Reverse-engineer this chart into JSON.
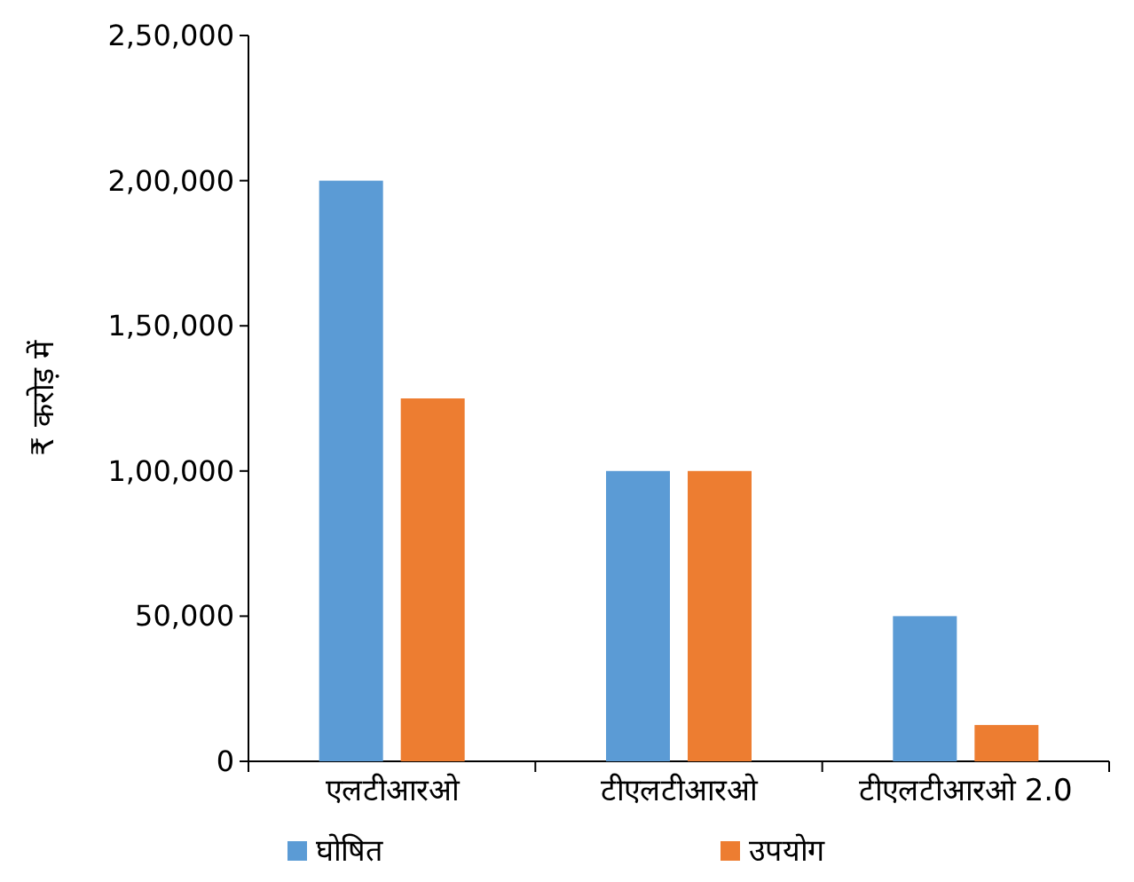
{
  "chart_data": {
    "type": "bar",
    "ylabel": "₹ करोड़ में",
    "categories": [
      "एलटीआरओ",
      "टीएलटीआरओ",
      "टीएलटीआरओ 2.0"
    ],
    "series": [
      {
        "name": "घोषित",
        "color": "#5b9bd5",
        "values": [
          200000,
          100000,
          50000
        ]
      },
      {
        "name": "उपयोग",
        "color": "#ed7d31",
        "values": [
          125000,
          100000,
          12500
        ]
      }
    ],
    "ylim": [
      0,
      250000
    ],
    "yticks": [
      {
        "value": 0,
        "label": "0"
      },
      {
        "value": 50000,
        "label": "50,000"
      },
      {
        "value": 100000,
        "label": "1,00,000"
      },
      {
        "value": 150000,
        "label": "1,50,000"
      },
      {
        "value": 200000,
        "label": "2,00,000"
      },
      {
        "value": 250000,
        "label": "2,50,000"
      }
    ],
    "grid": false,
    "legend": "bottom"
  }
}
